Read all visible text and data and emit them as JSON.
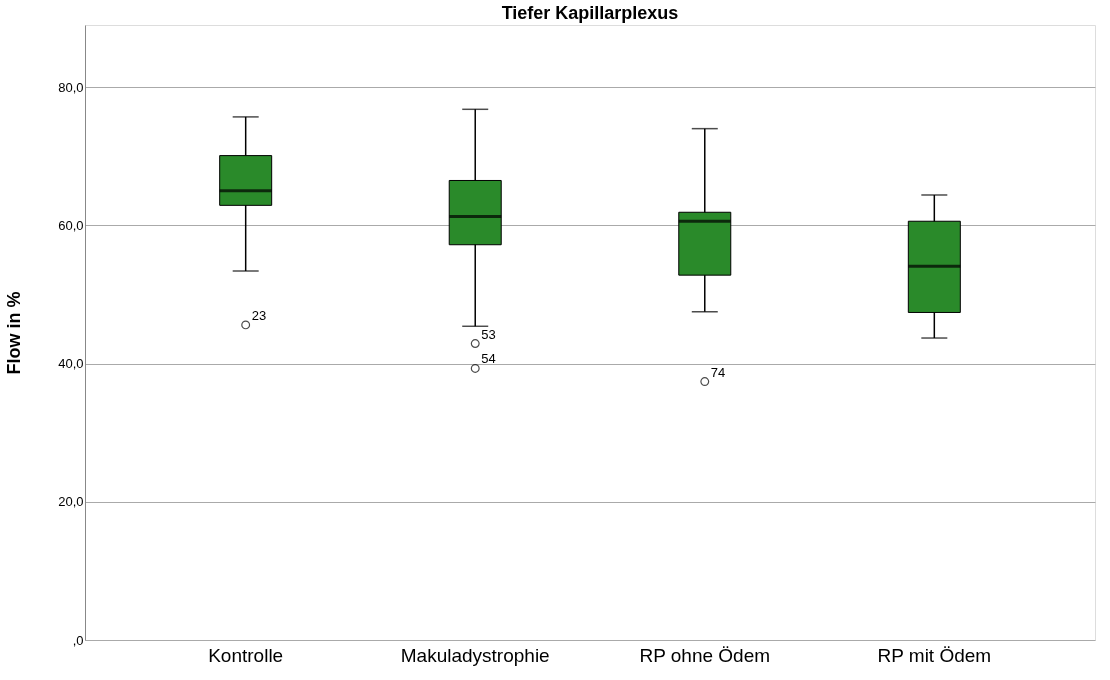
{
  "chart_data": {
    "type": "box",
    "title": "Tiefer Kapillarplexus",
    "ylabel": "Flow in %",
    "categories": [
      "Kontrolle",
      "Makuladystrophie",
      "RP ohne Ödem",
      "RP mit Ödem"
    ],
    "series": [
      {
        "color": "#2a8a2a",
        "boxes": [
          {
            "low": 53.4,
            "q1": 62.9,
            "median": 65.0,
            "q3": 70.1,
            "high": 75.7,
            "outliers": [
              45.6
            ]
          },
          {
            "low": 45.4,
            "q1": 57.2,
            "median": 61.3,
            "q3": 66.5,
            "high": 76.8,
            "outliers": [
              42.9,
              39.3
            ]
          },
          {
            "low": 47.5,
            "q1": 52.8,
            "median": 60.6,
            "q3": 61.9,
            "high": 74.0,
            "outliers": [
              37.4
            ]
          },
          {
            "low": 43.7,
            "q1": 47.4,
            "median": 54.1,
            "q3": 60.6,
            "high": 64.4
          }
        ]
      }
    ],
    "ylim": [
      0,
      89
    ],
    "yticks": [
      {
        "value": 0,
        "label": ",0"
      },
      {
        "value": 20,
        "label": "20,0"
      },
      {
        "value": 40,
        "label": "40,0"
      },
      {
        "value": 60,
        "label": "60,0"
      },
      {
        "value": 80,
        "label": "80,0"
      }
    ],
    "grid": "y",
    "annotations": [
      "23",
      "53",
      "54",
      "74"
    ]
  }
}
